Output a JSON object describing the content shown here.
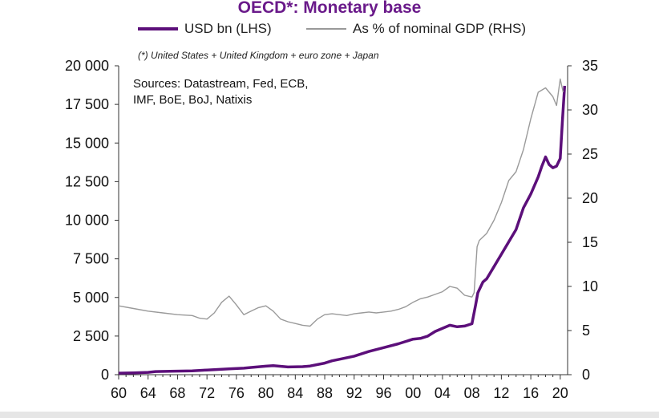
{
  "chart_data": {
    "type": "line",
    "title": "OECD*: Monetary base",
    "footnote": "(*) United States + United Kingdom + euro zone + Japan",
    "sources_line1": "Sources: Datastream, Fed, ECB,",
    "sources_line2": "IMF, BoE, BoJ, Natixis",
    "x_ticks": [
      "60",
      "64",
      "68",
      "72",
      "76",
      "80",
      "84",
      "88",
      "92",
      "96",
      "00",
      "04",
      "08",
      "12",
      "16",
      "20"
    ],
    "xlim": [
      1960,
      2021
    ],
    "ylim_left": [
      0,
      20000
    ],
    "ylim_right": [
      0,
      35
    ],
    "y_left_ticks": [
      "0",
      "2 500",
      "5 000",
      "7 500",
      "10 000",
      "12 500",
      "15 000",
      "17 500",
      "20 000"
    ],
    "y_right_ticks": [
      "0",
      "5",
      "10",
      "15",
      "20",
      "25",
      "30",
      "35"
    ],
    "colors": {
      "lhs": "#5c0f7a",
      "rhs": "#9a9a9a",
      "title": "#6a1a8a"
    },
    "series": [
      {
        "name": "USD bn (LHS)",
        "axis": "left",
        "x": [
          1960,
          1962,
          1964,
          1965,
          1967,
          1970,
          1972,
          1973,
          1975,
          1977,
          1978,
          1980,
          1981,
          1983,
          1985,
          1986,
          1988,
          1989,
          1990,
          1992,
          1994,
          1996,
          1998,
          2000,
          2001,
          2002,
          2003,
          2004,
          2005,
          2006,
          2007,
          2008,
          2008.5,
          2008.8,
          2009,
          2009.5,
          2010,
          2011,
          2012,
          2013,
          2014,
          2015,
          2016,
          2017,
          2017.5,
          2018,
          2018.5,
          2019,
          2019.5,
          2020,
          2020.3,
          2020.6
        ],
        "y": [
          100,
          120,
          150,
          200,
          220,
          250,
          300,
          320,
          380,
          420,
          470,
          550,
          580,
          500,
          520,
          560,
          750,
          900,
          1000,
          1200,
          1500,
          1750,
          2000,
          2300,
          2350,
          2500,
          2800,
          3000,
          3200,
          3100,
          3150,
          3300,
          4500,
          5300,
          5500,
          6000,
          6200,
          7000,
          7800,
          8600,
          9400,
          10800,
          11700,
          12800,
          13500,
          14100,
          13600,
          13400,
          13500,
          14000,
          16500,
          18700
        ]
      },
      {
        "name": "As % of nominal GDP (RHS)",
        "axis": "right",
        "x": [
          1960,
          1962,
          1964,
          1966,
          1968,
          1970,
          1971,
          1972,
          1973,
          1974,
          1975,
          1976,
          1977,
          1978,
          1979,
          1980,
          1981,
          1982,
          1983,
          1984,
          1985,
          1986,
          1987,
          1988,
          1989,
          1990,
          1991,
          1992,
          1993,
          1994,
          1995,
          1996,
          1997,
          1998,
          1999,
          2000,
          2001,
          2002,
          2003,
          2004,
          2005,
          2006,
          2007,
          2008,
          2008.3,
          2008.7,
          2009,
          2010,
          2011,
          2012,
          2013,
          2014,
          2015,
          2016,
          2017,
          2018,
          2019,
          2019.5,
          2020,
          2020.4
        ],
        "y": [
          7.8,
          7.5,
          7.2,
          7.0,
          6.8,
          6.7,
          6.4,
          6.3,
          7.0,
          8.2,
          8.9,
          7.9,
          6.8,
          7.2,
          7.6,
          7.8,
          7.2,
          6.3,
          6.0,
          5.8,
          5.6,
          5.5,
          6.3,
          6.8,
          6.9,
          6.8,
          6.7,
          6.9,
          7.0,
          7.1,
          7.0,
          7.1,
          7.2,
          7.4,
          7.7,
          8.2,
          8.6,
          8.8,
          9.1,
          9.4,
          10.0,
          9.8,
          9.0,
          8.8,
          9.3,
          14.5,
          15.2,
          16.0,
          17.5,
          19.5,
          22.0,
          23.0,
          25.5,
          29.0,
          32.0,
          32.5,
          31.5,
          30.5,
          33.5,
          32.0
        ]
      }
    ]
  }
}
